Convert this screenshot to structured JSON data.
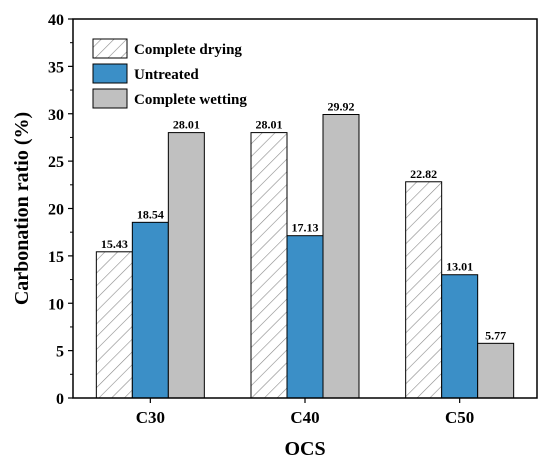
{
  "chart_data": {
    "type": "bar",
    "categories": [
      "C30",
      "C40",
      "C50"
    ],
    "series": [
      {
        "name": "Complete drying",
        "values": [
          15.43,
          28.01,
          22.82
        ],
        "fill": "hatch",
        "color": "#ffffff"
      },
      {
        "name": "Untreated",
        "values": [
          18.54,
          17.13,
          13.01
        ],
        "fill": "solid",
        "color": "#3b8fc7"
      },
      {
        "name": "Complete wetting",
        "values": [
          28.01,
          29.92,
          5.77
        ],
        "fill": "solid",
        "color": "#c0c0c0"
      }
    ],
    "data_labels": [
      [
        "15.43",
        "28.01",
        "22.82"
      ],
      [
        "18.54",
        "17.13",
        "13.01"
      ],
      [
        "28.01",
        "29.92",
        "5.77"
      ]
    ],
    "xlabel": "OCS",
    "ylabel": "Carbonation ratio (%)",
    "ylim": [
      0,
      40
    ],
    "yticks": [
      0,
      5,
      10,
      15,
      20,
      25,
      30,
      35,
      40
    ],
    "grid": false,
    "legend_position": "top-left"
  }
}
